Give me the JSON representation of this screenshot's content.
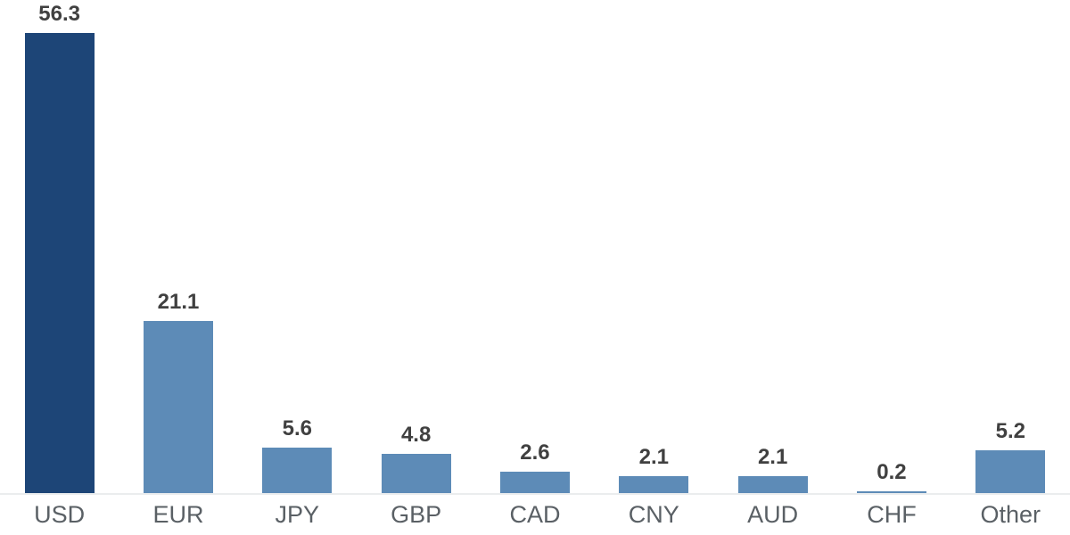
{
  "chart_data": {
    "type": "bar",
    "title": "",
    "xlabel": "",
    "ylabel": "",
    "categories": [
      "USD",
      "EUR",
      "JPY",
      "GBP",
      "CAD",
      "CNY",
      "AUD",
      "CHF",
      "Other"
    ],
    "values": [
      56.3,
      21.1,
      5.6,
      4.8,
      2.6,
      2.1,
      2.1,
      0.2,
      5.2
    ],
    "value_labels": [
      "56.3",
      "21.1",
      "5.6",
      "4.8",
      "2.6",
      "2.1",
      "2.1",
      "0.2",
      "5.2"
    ],
    "ylim": [
      0,
      60
    ],
    "grid": false,
    "legend": false,
    "highlight_index": 0,
    "layout": {
      "orientation": "vertical",
      "value_labels_position": "above-bars",
      "category_labels_position": "below-baseline"
    },
    "colors": {
      "highlight_bar": "#1d4577",
      "bar": "#5d8bb7",
      "value_label": "#404040",
      "axis_label": "#5a6065",
      "baseline": "#ebedee",
      "background": "#ffffff"
    }
  }
}
